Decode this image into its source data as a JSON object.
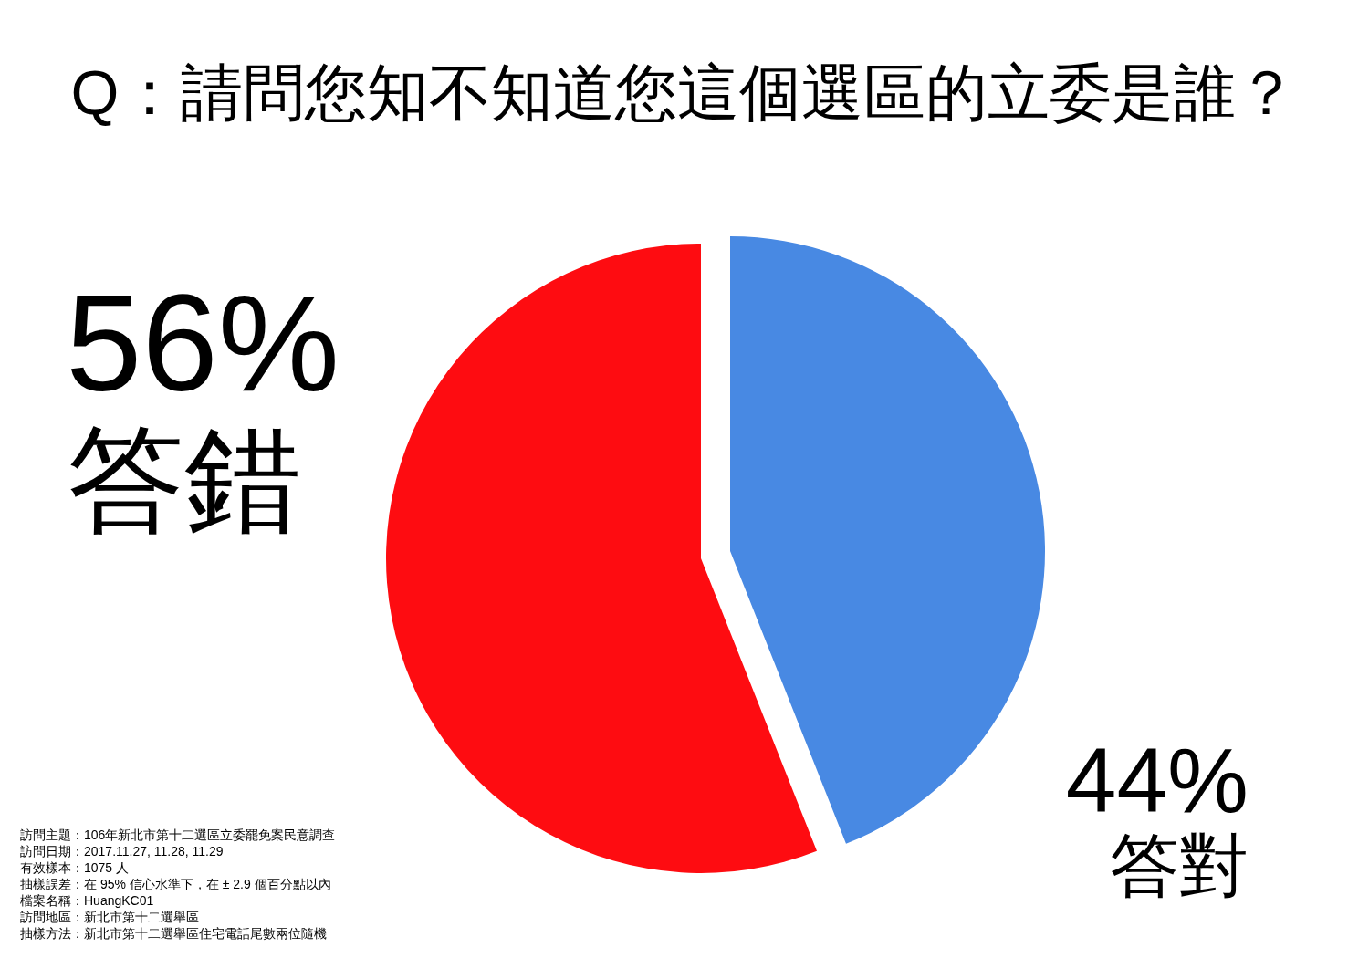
{
  "chart_data": {
    "type": "pie",
    "title": "Q：請問您知不知道您這個選區的立委是誰？",
    "categories": [
      "答對",
      "答錯"
    ],
    "values": [
      44,
      56
    ],
    "colors": [
      "#4889e3",
      "#fe0c11"
    ],
    "value_labels": [
      "44%",
      "56%"
    ],
    "annotations": [
      "訪問主題：106年新北市第十二選區立委罷免案民意調查",
      "訪問日期：2017.11.27, 11.28, 11.29",
      "有效樣本：1075 人",
      "抽樣誤差：在 95% 信心水準下，在 ± 2.9 個百分點以內",
      "檔案名稱：HuangKC01",
      "訪問地區：新北市第十二選舉區",
      "抽樣方法：新北市第十二選舉區住宅電話尾數兩位隨機"
    ]
  }
}
